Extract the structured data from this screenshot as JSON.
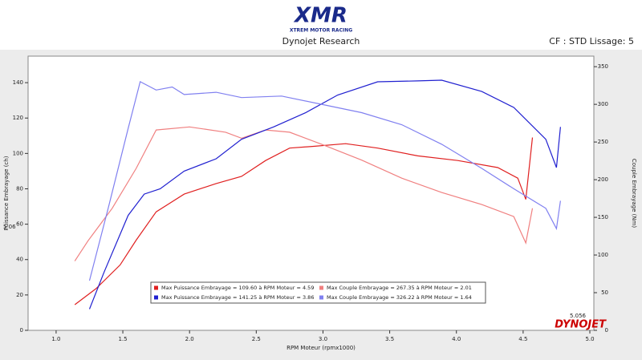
{
  "chart_data": {
    "type": "line",
    "logo": "XMR",
    "logo_subtitle": "XTREM MOTOR RACING",
    "title": "Dynojet Research",
    "subtitle": "CF : STD Lissage: 5",
    "xlabel": "RPM Moteur (rpmx1000)",
    "ylabel": "Puissance Embrayage (ch)",
    "y2label": "Couple Embrayage (Nm)",
    "annotations": [
      "5.056",
      "5.06",
      "DYNOJET"
    ],
    "xlim": [
      0.79,
      5.03
    ],
    "xticks": [
      {
        "value": 1,
        "label": "1.0"
      },
      1.5,
      {
        "value": 2,
        "label": "2.0"
      },
      2.5,
      {
        "value": 3,
        "label": "3.0"
      },
      3.5,
      {
        "value": 4,
        "label": "4.0"
      },
      4.5,
      {
        "value": 5,
        "label": "5.0"
      }
    ],
    "ylim": [
      0,
      155
    ],
    "yticks": [
      0,
      20,
      40,
      60,
      80,
      100,
      120,
      140
    ],
    "y2lim": [
      0,
      364
    ],
    "y2ticks": [
      0,
      50,
      100,
      150,
      200,
      250,
      300,
      350
    ],
    "grid": false,
    "legend": "bottom",
    "series": [
      {
        "name": "Max Puissance Embrayage = 109.60 à RPM Moteur = 4.59",
        "color": "#e02020",
        "axis": "y",
        "x": [
          1.14,
          1.3,
          1.48,
          1.6,
          1.75,
          1.96,
          2.2,
          2.39,
          2.57,
          2.75,
          2.93,
          3.17,
          3.41,
          3.71,
          4.01,
          4.31,
          4.46,
          4.52,
          4.57
        ],
        "values": [
          14.5,
          23.6,
          37,
          51,
          67,
          77,
          83,
          87,
          96,
          103,
          104,
          105.5,
          103,
          98.6,
          96,
          92,
          86,
          74,
          109
        ]
      },
      {
        "name": "Max Couple Embrayage = 267.35 à RPM Moteur = 2.01",
        "color": "#f08080",
        "axis": "y2",
        "x": [
          1.14,
          1.24,
          1.42,
          1.6,
          1.75,
          2.0,
          2.27,
          2.39,
          2.57,
          2.75,
          2.99,
          3.29,
          3.59,
          3.89,
          4.19,
          4.43,
          4.52,
          4.57
        ],
        "values": [
          92,
          119,
          162,
          215,
          266,
          270,
          263,
          255,
          266,
          263,
          247,
          226,
          202,
          183,
          167,
          151,
          116,
          162
        ]
      },
      {
        "name": "Max Puissance Embrayage = 141.25 à RPM Moteur = 3.86",
        "color": "#2020d0",
        "axis": "y",
        "x": [
          1.25,
          1.36,
          1.54,
          1.66,
          1.78,
          1.96,
          2.2,
          2.39,
          2.63,
          2.87,
          3.11,
          3.41,
          3.71,
          3.89,
          4.19,
          4.43,
          4.67,
          4.75,
          4.78
        ],
        "values": [
          12,
          33,
          65,
          77,
          80,
          90,
          97,
          108,
          115,
          123,
          133,
          140.5,
          141,
          141.4,
          135,
          126,
          108,
          92,
          115
        ]
      },
      {
        "name": "Max Couple Embrayage = 326.22 à RPM Moteur = 1.64",
        "color": "#8080f0",
        "axis": "y2",
        "x": [
          1.25,
          1.39,
          1.54,
          1.63,
          1.75,
          1.87,
          1.96,
          2.2,
          2.39,
          2.69,
          2.99,
          3.29,
          3.59,
          3.89,
          4.19,
          4.43,
          4.67,
          4.75,
          4.78
        ],
        "values": [
          66,
          162,
          268,
          330,
          319,
          323,
          313,
          316,
          309,
          311,
          300,
          289,
          273,
          247,
          215,
          188,
          162,
          135,
          172
        ]
      }
    ]
  }
}
